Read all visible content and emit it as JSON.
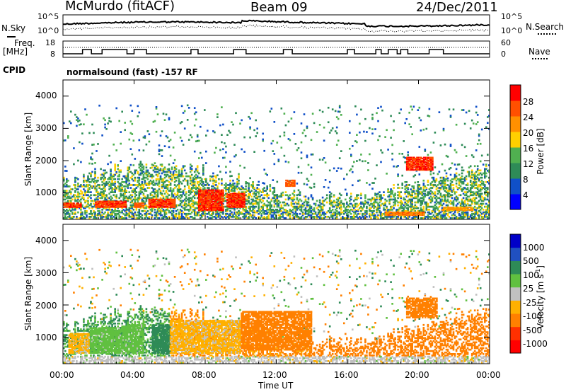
{
  "header": {
    "station": "McMurdo (fitACF)",
    "beam": "Beam 09",
    "date": "24/Dec/2011"
  },
  "summary_panel": {
    "nsky_label": "N.Sky",
    "nsearch_label": "N.Search",
    "freq_label_1": "Freq.",
    "freq_label_2": "[MHz]",
    "nave_label": "Nave",
    "cpid_label": "CPID",
    "cpid_text": "normalsound (fast) -157 RF",
    "noise_left_ticks": [
      "10^5",
      "10^0"
    ],
    "noise_right_ticks": [
      "10^5",
      "10^0"
    ],
    "freq_ticks": [
      "18",
      "8"
    ],
    "nave_ticks": [
      "60",
      "0"
    ]
  },
  "axes": {
    "xlabel": "Time UT",
    "x_ticks": [
      "00:00",
      "04:00",
      "08:00",
      "12:00",
      "16:00",
      "20:00",
      "00:00"
    ],
    "ylabel_top": "Slant Range [km]",
    "ylabel_bottom": "Slant Range [km]",
    "y_ticks": [
      "4000",
      "3000",
      "2000",
      "1000"
    ]
  },
  "colorbars": {
    "power": {
      "label": "Power [dB]",
      "ticks": [
        "28",
        "24",
        "20",
        "16",
        "12",
        "8",
        "4"
      ],
      "colors": [
        "#0000ff",
        "#1050c8",
        "#2e8b57",
        "#50b050",
        "#ffd000",
        "#ff9000",
        "#ff5000",
        "#ff0000"
      ]
    },
    "velocity": {
      "label_main": "Velocity [m s",
      "label_sup": "-1",
      "label_end": "]",
      "ticks": [
        "1000",
        "500",
        "100",
        "25",
        "-25",
        "-100",
        "-500",
        "-1000"
      ],
      "colors": [
        "#0000c8",
        "#2050c0",
        "#2e8b57",
        "#60c040",
        "#c0c0c0",
        "#ffb000",
        "#ff8000",
        "#ff3000",
        "#ff0000"
      ]
    }
  },
  "chart_data": [
    {
      "type": "heatmap",
      "title": "Power",
      "xlabel": "Time UT",
      "ylabel": "Slant Range [km]",
      "x_range_hours": [
        0,
        24
      ],
      "ylim": [
        180,
        4500
      ],
      "z_label": "Power [dB]",
      "z_range": [
        0,
        30
      ],
      "description_values": [
        {
          "t_start": 0.0,
          "t_end": 1.0,
          "range_start": 550,
          "range_end": 700,
          "power": 28
        },
        {
          "t_start": 1.8,
          "t_end": 3.5,
          "range_start": 550,
          "range_end": 750,
          "power": 28
        },
        {
          "t_start": 4.0,
          "t_end": 4.5,
          "range_start": 550,
          "range_end": 700,
          "power": 26
        },
        {
          "t_start": 4.8,
          "t_end": 6.3,
          "range_start": 550,
          "range_end": 800,
          "power": 28
        },
        {
          "t_start": 7.6,
          "t_end": 9.0,
          "range_start": 450,
          "range_end": 1100,
          "power": 28
        },
        {
          "t_start": 9.2,
          "t_end": 10.2,
          "range_start": 550,
          "range_end": 1000,
          "power": 28
        },
        {
          "t_start": 12.5,
          "t_end": 13.0,
          "range_start": 1200,
          "range_end": 1400,
          "power": 26
        },
        {
          "t_start": 18.1,
          "t_end": 20.3,
          "range_start": 300,
          "range_end": 400,
          "power": 24
        },
        {
          "t_start": 19.3,
          "t_end": 20.8,
          "range_start": 1700,
          "range_end": 2100,
          "power": 28
        },
        {
          "t_start": 21.3,
          "t_end": 23.0,
          "range_start": 450,
          "range_end": 550,
          "power": 22
        }
      ]
    },
    {
      "type": "heatmap",
      "title": "Velocity",
      "xlabel": "Time UT",
      "ylabel": "Slant Range [km]",
      "x_range_hours": [
        0,
        24
      ],
      "ylim": [
        180,
        4500
      ],
      "z_label": "Velocity [m s-1]",
      "z_range": [
        -1000,
        1000
      ],
      "description_values": [
        {
          "t_start": 0.3,
          "t_end": 1.5,
          "range_start": 500,
          "range_end": 1100,
          "velocity": -50
        },
        {
          "t_start": 1.5,
          "t_end": 3.5,
          "range_start": 500,
          "range_end": 1300,
          "velocity": 60
        },
        {
          "t_start": 3.5,
          "t_end": 4.5,
          "range_start": 500,
          "range_end": 1400,
          "velocity": 60
        },
        {
          "t_start": 5.0,
          "t_end": 6.0,
          "range_start": 500,
          "range_end": 1400,
          "velocity": 200
        },
        {
          "t_start": 6.0,
          "t_end": 10.0,
          "range_start": 500,
          "range_end": 1500,
          "velocity": -50
        },
        {
          "t_start": 10.0,
          "t_end": 14.0,
          "range_start": 600,
          "range_end": 1800,
          "velocity": -150
        },
        {
          "t_start": 19.3,
          "t_end": 21.0,
          "range_start": 1600,
          "range_end": 2200,
          "velocity": -150
        }
      ]
    }
  ]
}
